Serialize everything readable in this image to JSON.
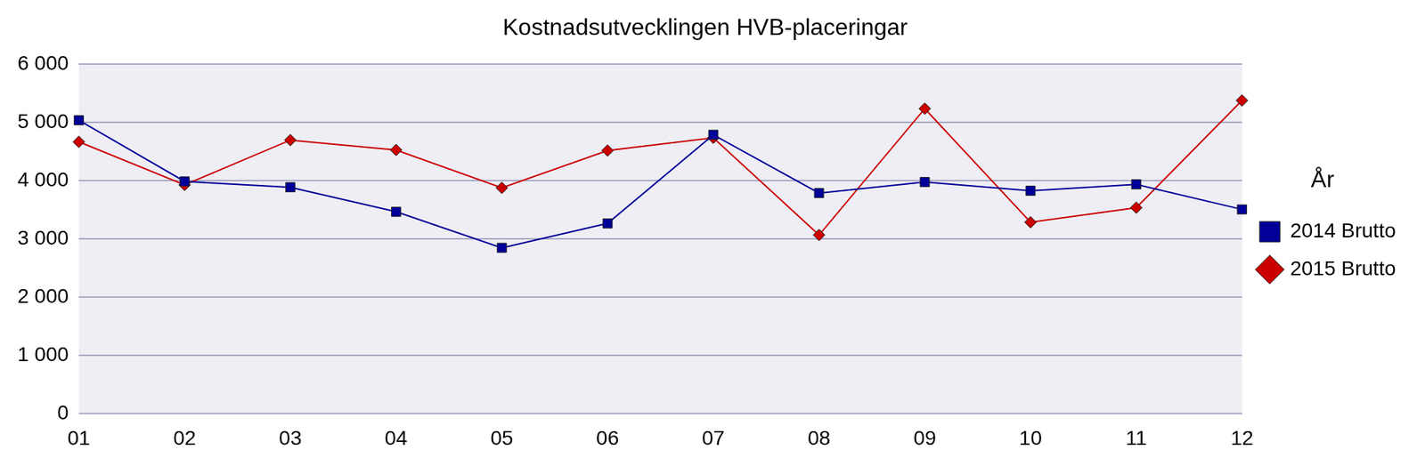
{
  "chart_data": {
    "type": "line",
    "title": "Kostnadsutvecklingen HVB-placeringar",
    "categories": [
      "01",
      "02",
      "03",
      "04",
      "05",
      "06",
      "07",
      "08",
      "09",
      "10",
      "11",
      "12"
    ],
    "series": [
      {
        "name": "2014 Brutto",
        "color": "#000099",
        "marker": "square",
        "values": [
          5040,
          3990,
          3890,
          3470,
          2850,
          3270,
          4790,
          3790,
          3980,
          3830,
          3940,
          3510
        ]
      },
      {
        "name": "2015 Brutto",
        "color": "#cc0000",
        "marker": "diamond",
        "values": [
          4670,
          3930,
          4700,
          4530,
          3880,
          4520,
          4740,
          3070,
          5240,
          3290,
          3540,
          5380
        ]
      }
    ],
    "ylim": [
      0,
      6000
    ],
    "yticks": [
      0,
      {
        "value": 1000,
        "label": "1 000"
      },
      {
        "value": 2000,
        "label": "2 000"
      },
      {
        "value": 3000,
        "label": "3 000"
      },
      {
        "value": 4000,
        "label": "4 000"
      },
      {
        "value": 5000,
        "label": "5 000"
      },
      {
        "value": 6000,
        "label": "6 000"
      }
    ],
    "grid": true,
    "legend": "right",
    "legend_title": "År"
  }
}
